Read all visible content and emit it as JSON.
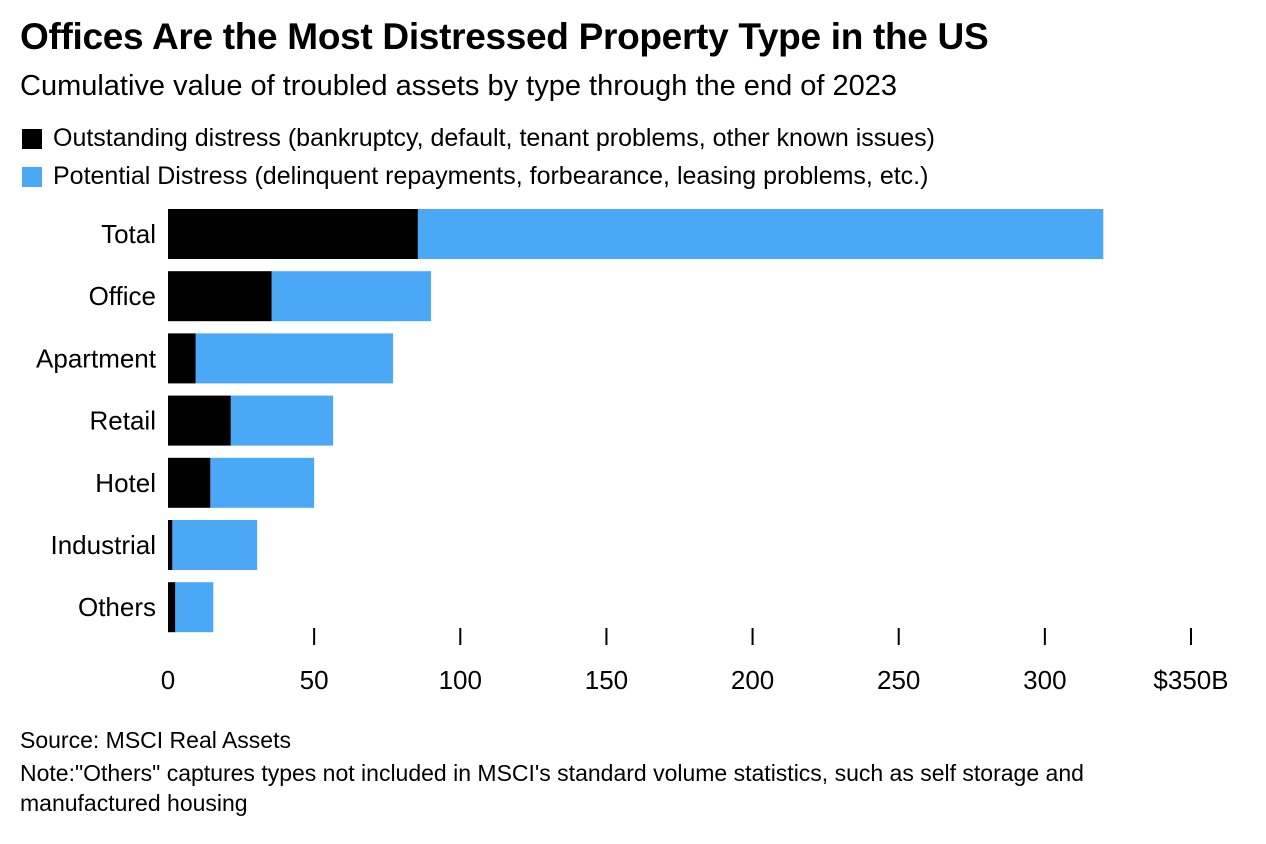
{
  "title": "Offices Are the Most Distressed Property Type in the US",
  "subtitle": "Cumulative value of troubled assets by type through the end of 2023",
  "colors": {
    "outstanding": "#000000",
    "potential": "#4aa8f7"
  },
  "chart_data": {
    "type": "bar",
    "orientation": "horizontal",
    "stacked": true,
    "categories": [
      "Total",
      "Office",
      "Apartment",
      "Retail",
      "Hotel",
      "Industrial",
      "Others"
    ],
    "series": [
      {
        "name": "Outstanding distress (bankruptcy, default, tenant problems, other known issues)",
        "color": "#000000",
        "values": [
          85.5,
          35.5,
          9.5,
          21.5,
          14.5,
          1.5,
          2.5
        ]
      },
      {
        "name": "Potential Distress (delinquent repayments, forbearance, leasing problems, etc.)",
        "color": "#4aa8f7",
        "values": [
          234.5,
          54.5,
          67.5,
          35,
          35.5,
          29,
          13
        ]
      }
    ],
    "xlim": [
      0,
      350
    ],
    "ticks": [
      0,
      50,
      100,
      150,
      200,
      250,
      300,
      350
    ],
    "tick_labels": [
      "0",
      "50",
      "100",
      "150",
      "200",
      "250",
      "300",
      "$350B"
    ],
    "legend_position": "top-left",
    "grid": false
  },
  "source": "Source: MSCI Real Assets",
  "note": "Note:\"Others\" captures types not included in MSCI's standard volume statistics, such as self storage and manufactured housing"
}
